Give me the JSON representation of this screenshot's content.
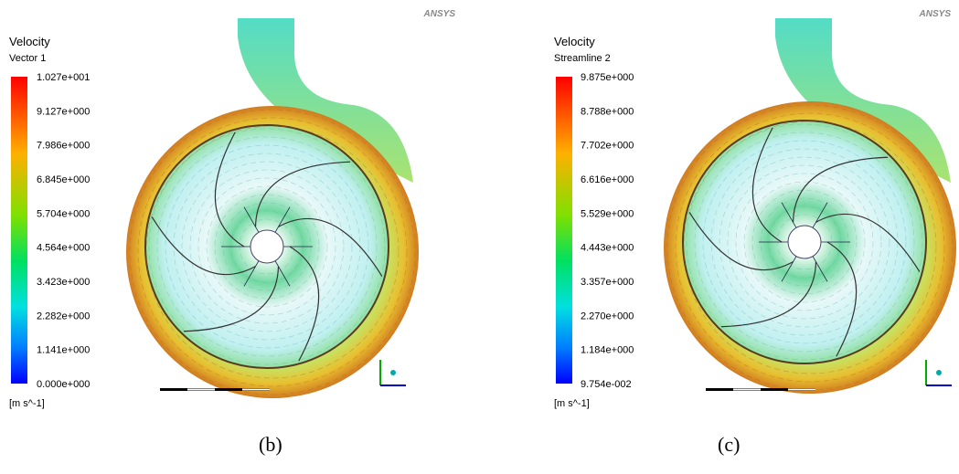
{
  "panels": [
    {
      "logo": "ANSYS",
      "title": "Velocity",
      "subtitle": "Vector 1",
      "legend_labels": [
        "1.027e+001",
        "9.127e+000",
        "7.986e+000",
        "6.845e+000",
        "5.704e+000",
        "4.564e+000",
        "3.423e+000",
        "2.282e+000",
        "1.141e+000",
        "0.000e+000"
      ],
      "unit": "[m s^-1]",
      "caption": "(b)"
    },
    {
      "logo": "ANSYS",
      "title": "Velocity",
      "subtitle": "Streamline 2",
      "legend_labels": [
        "9.875e+000",
        "8.788e+000",
        "7.702e+000",
        "6.616e+000",
        "5.529e+000",
        "4.443e+000",
        "3.357e+000",
        "2.270e+000",
        "1.184e+000",
        "9.754e-002"
      ],
      "unit": "[m s^-1]",
      "caption": "(c)"
    }
  ]
}
